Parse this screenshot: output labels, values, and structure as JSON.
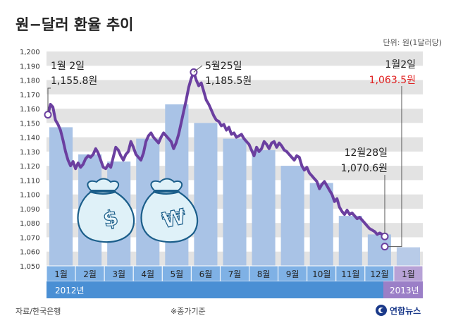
{
  "title": "원−달러 환율 추이",
  "unit_note": "단위: 원(1달러당)",
  "source": "자료/한국은행",
  "note": "※종가기준",
  "logo": "연합뉴스",
  "year_2012": "2012년",
  "year_2013": "2013년",
  "icons": [
    "dollar-money-bag-icon",
    "won-money-bag-icon"
  ],
  "colors": {
    "line": "#6b3fa0",
    "bars": "#a9c3e6",
    "grid_band": "#e3e3e3",
    "month_bar_2012": "#7fb1e5",
    "month_bar_2013": "#b7a2d6",
    "year_bar_2012": "#4a8fd4",
    "year_bar_2013": "#9b7fc7",
    "highlight_red": "#e02020"
  },
  "chart_data": {
    "type": "line",
    "title": "원−달러 환율 추이",
    "ylabel": "단위: 원(1달러당)",
    "ylim": [
      1050,
      1200
    ],
    "yticks": [
      "1,050",
      "1,060",
      "1,070",
      "1,080",
      "1,090",
      "1,100",
      "1,110",
      "1,120",
      "1,130",
      "1,140",
      "1,150",
      "1,160",
      "1,170",
      "1,180",
      "1,190",
      "1,200"
    ],
    "months": [
      "1월",
      "2월",
      "3월",
      "4월",
      "5월",
      "6월",
      "7월",
      "8월",
      "9월",
      "10월",
      "11월",
      "12월",
      "1월"
    ],
    "monthly_bars": [
      1147,
      1128,
      1123,
      1139,
      1163,
      1150,
      1139,
      1131,
      1120,
      1108,
      1085,
      1072,
      1063
    ],
    "series": [
      {
        "values": [
          1155.8,
          1163,
          1161,
          1152,
          1149,
          1145,
          1138,
          1130,
          1124,
          1120,
          1123,
          1118,
          1122,
          1119,
          1121,
          1125,
          1127,
          1126,
          1128,
          1132,
          1129,
          1124,
          1119,
          1118,
          1121,
          1119,
          1126,
          1133,
          1131,
          1127,
          1124,
          1128,
          1130,
          1137,
          1133,
          1128,
          1126,
          1124,
          1129,
          1137,
          1141,
          1143,
          1140,
          1138,
          1136,
          1140,
          1143,
          1141,
          1139,
          1137,
          1132,
          1136,
          1142,
          1150,
          1158,
          1166,
          1175,
          1181,
          1185.5,
          1180,
          1176,
          1178,
          1172,
          1166,
          1163,
          1159,
          1155,
          1152,
          1151,
          1148,
          1149,
          1145,
          1147,
          1142,
          1143,
          1140,
          1141,
          1142,
          1139,
          1137,
          1135,
          1131,
          1127,
          1133,
          1130,
          1132,
          1137,
          1135,
          1132,
          1136,
          1137,
          1133,
          1136,
          1134,
          1131,
          1130,
          1128,
          1126,
          1124,
          1127,
          1126,
          1120,
          1117,
          1119,
          1115,
          1113,
          1111,
          1109,
          1104,
          1107,
          1109,
          1106,
          1103,
          1100,
          1095,
          1097,
          1091,
          1088,
          1086,
          1089,
          1086,
          1087,
          1085,
          1083,
          1084,
          1082,
          1080,
          1078,
          1076,
          1075,
          1074,
          1072,
          1073,
          1072,
          1070.6,
          1063.5
        ],
        "annotations": [
          {
            "date": "1월 2일",
            "value": "1,155.8원"
          },
          {
            "date": "5월25일",
            "value": "1,185.5원"
          },
          {
            "date": "12월28일",
            "value": "1,070.6원"
          },
          {
            "date": "1월2일",
            "value": "1,063.5원"
          }
        ]
      }
    ],
    "grid": true
  }
}
